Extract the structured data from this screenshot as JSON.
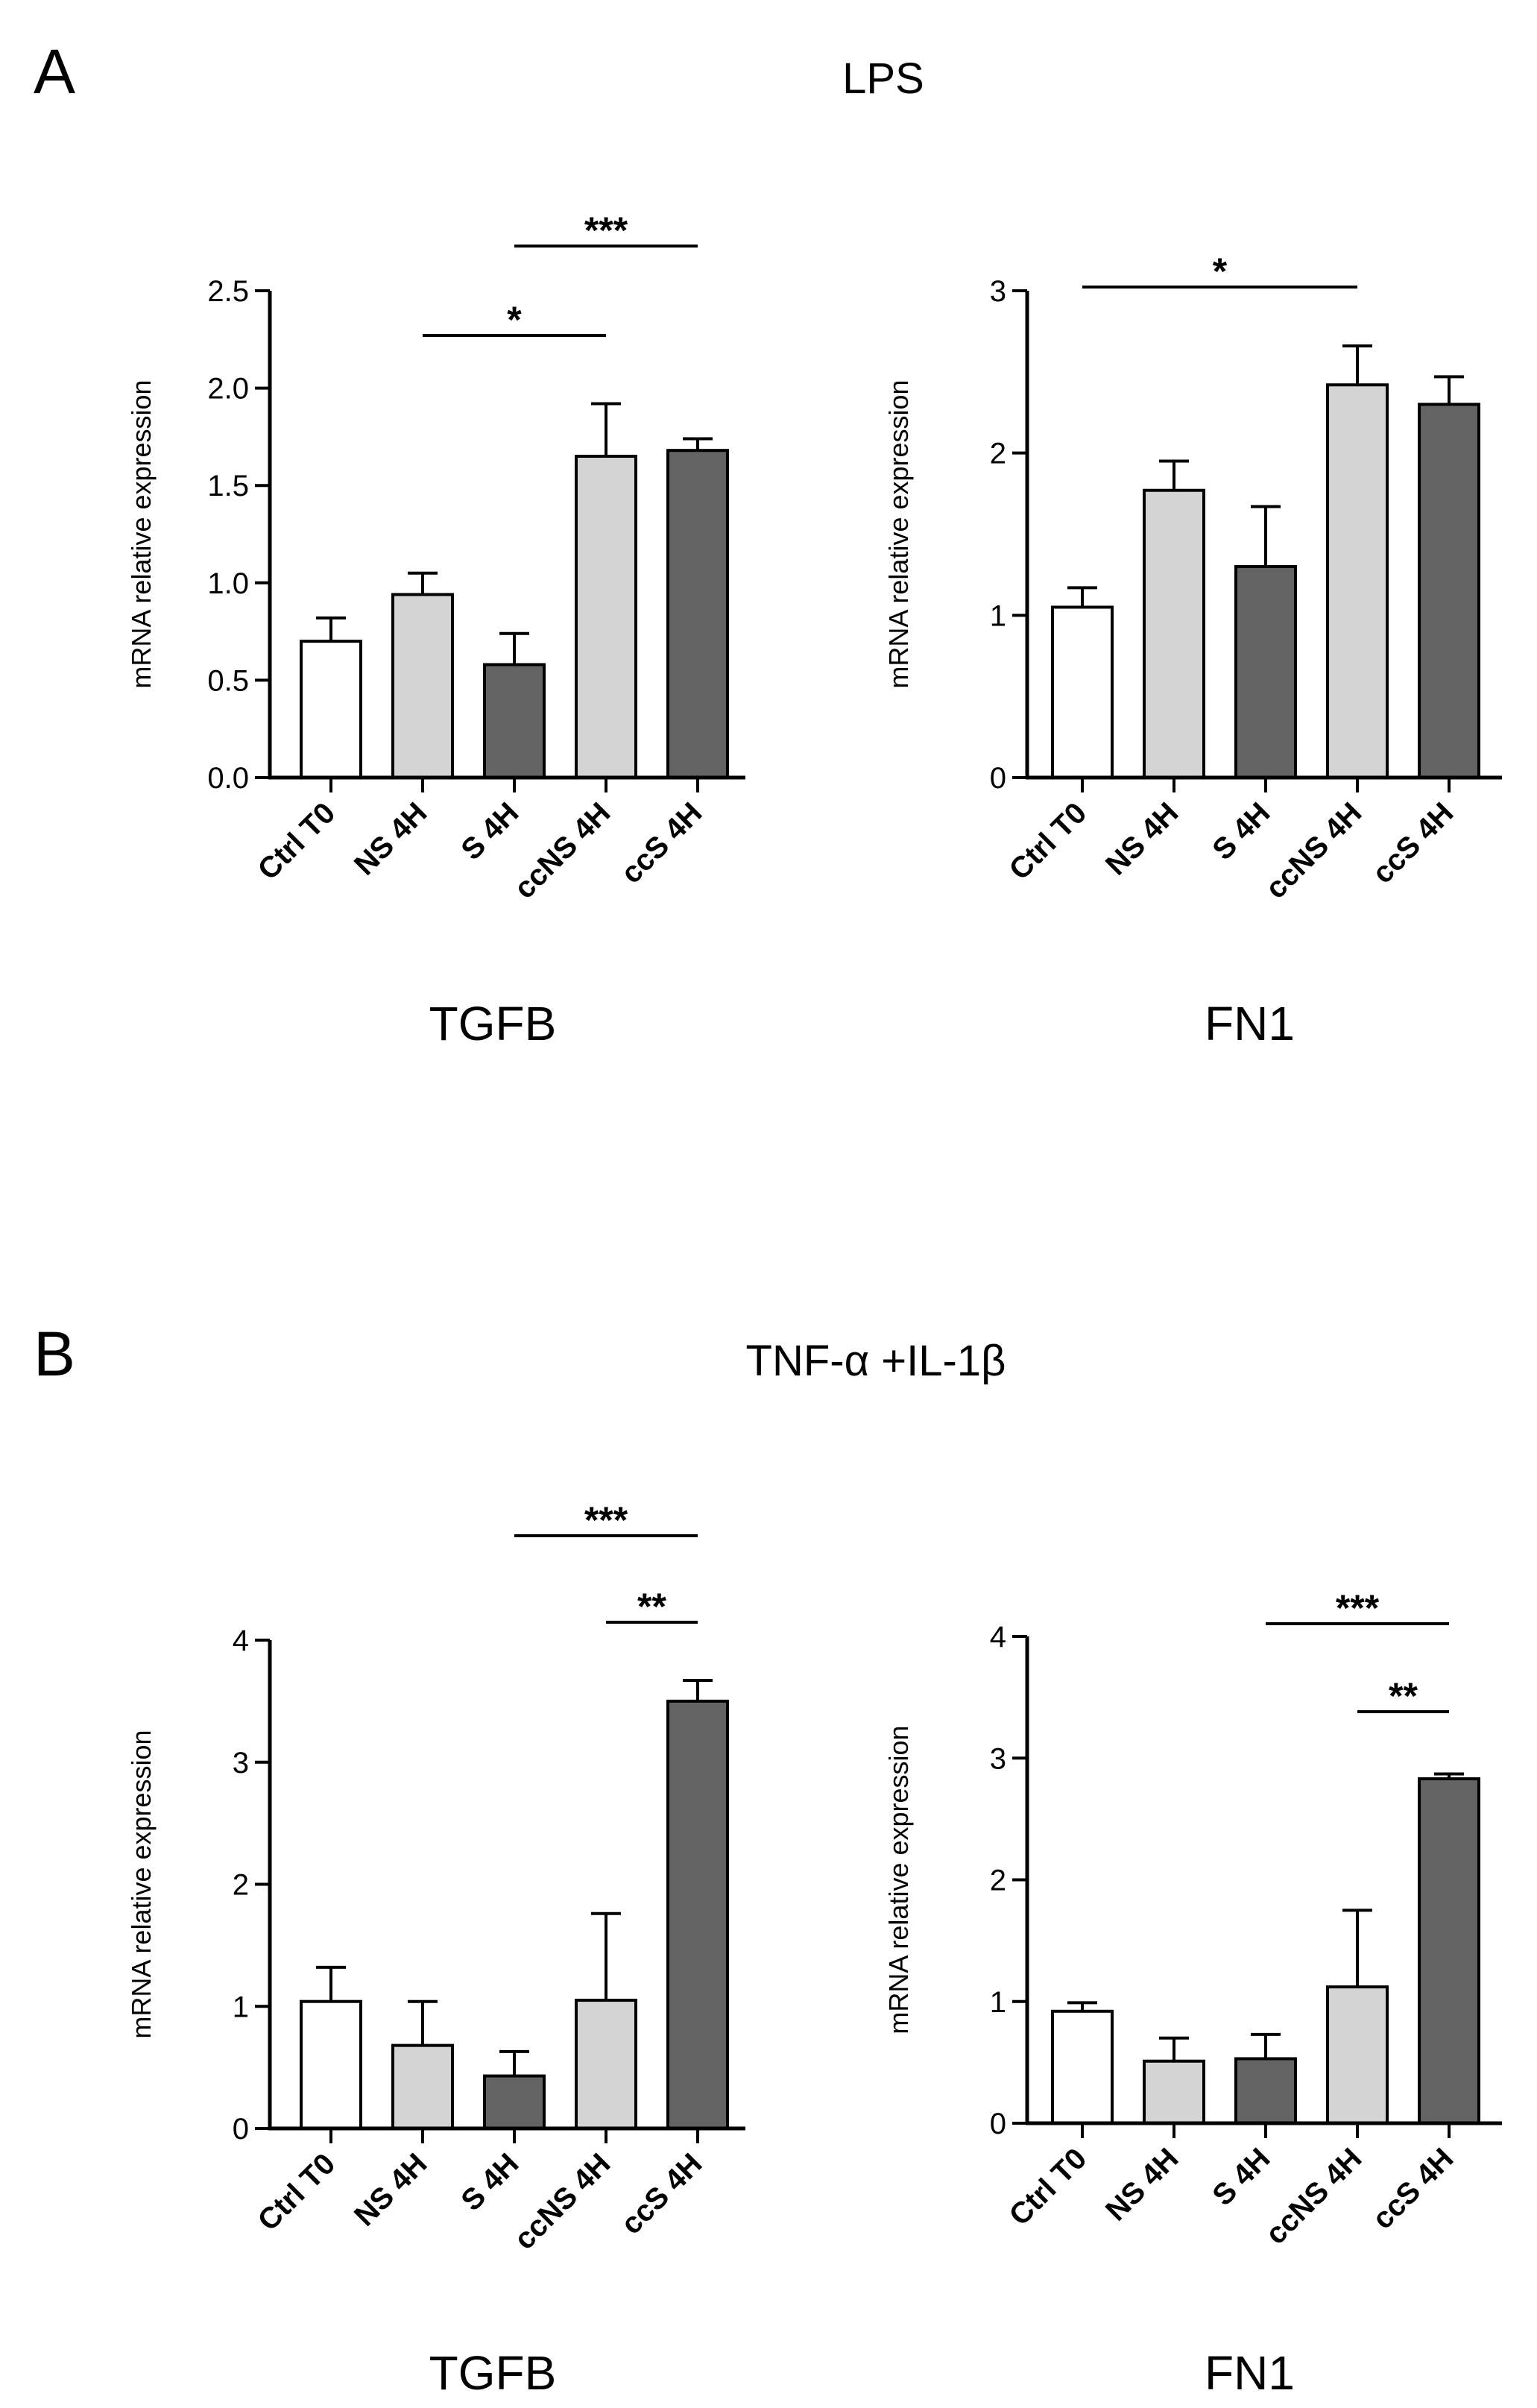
{
  "figure": {
    "panels": [
      {
        "letter": "A",
        "condition": "LPS"
      },
      {
        "letter": "B",
        "condition": "TNF-α +IL-1β"
      }
    ]
  },
  "colors": {
    "Ctrl T0": "#ffffff",
    "NS 4H": "#d4d4d4",
    "S 4H": "#636363",
    "ccNS 4H": "#d4d4d4",
    "ccS 4H": "#636363",
    "axis": "#000000"
  },
  "chart_data": [
    {
      "type": "bar",
      "panel": "A",
      "xlabel": "TGFB",
      "ylabel": "mRNA relative expression",
      "categories": [
        "Ctrl T0",
        "NS 4H",
        "S 4H",
        "ccNS 4H",
        "ccS 4H"
      ],
      "values": [
        0.7,
        0.94,
        0.58,
        1.65,
        1.68
      ],
      "errors": [
        0.12,
        0.11,
        0.16,
        0.27,
        0.06
      ],
      "ylim": [
        0,
        2.5
      ],
      "yticks": [
        "0.0",
        "0.5",
        "1.0",
        "1.5",
        "2.0",
        "2.5"
      ],
      "significance": [
        {
          "from": "NS 4H",
          "to": "ccNS 4H",
          "label": "*"
        },
        {
          "from": "S 4H",
          "to": "ccS 4H",
          "label": "***"
        }
      ]
    },
    {
      "type": "bar",
      "panel": "A",
      "xlabel": "FN1",
      "ylabel": "mRNA relative expression",
      "categories": [
        "Ctrl T0",
        "NS 4H",
        "S 4H",
        "ccNS 4H",
        "ccS 4H"
      ],
      "values": [
        1.05,
        1.77,
        1.3,
        2.42,
        2.3
      ],
      "errors": [
        0.12,
        0.18,
        0.37,
        0.24,
        0.17
      ],
      "ylim": [
        0,
        3
      ],
      "yticks": [
        "0",
        "1",
        "2",
        "3"
      ],
      "significance": [
        {
          "from": "Ctrl T0",
          "to": "ccNS 4H",
          "label": "*"
        }
      ]
    },
    {
      "type": "bar",
      "panel": "B",
      "xlabel": "TGFB",
      "ylabel": "mRNA relative expression",
      "categories": [
        "Ctrl T0",
        "NS 4H",
        "S 4H",
        "ccNS 4H",
        "ccS 4H"
      ],
      "values": [
        1.04,
        0.68,
        0.43,
        1.05,
        3.5
      ],
      "errors": [
        0.28,
        0.36,
        0.2,
        0.71,
        0.17
      ],
      "ylim": [
        0,
        4
      ],
      "yticks": [
        "0",
        "1",
        "2",
        "3",
        "4"
      ],
      "significance": [
        {
          "from": "S 4H",
          "to": "ccS 4H",
          "label": "***"
        },
        {
          "from": "ccNS 4H",
          "to": "ccS 4H",
          "label": "**"
        }
      ]
    },
    {
      "type": "bar",
      "panel": "B",
      "xlabel": "FN1",
      "ylabel": "mRNA relative expression",
      "categories": [
        "Ctrl T0",
        "NS 4H",
        "S 4H",
        "ccNS 4H",
        "ccS 4H"
      ],
      "values": [
        0.92,
        0.51,
        0.53,
        1.12,
        2.83
      ],
      "errors": [
        0.07,
        0.19,
        0.2,
        0.63,
        0.04
      ],
      "ylim": [
        0,
        4
      ],
      "yticks": [
        "0",
        "1",
        "2",
        "3",
        "4"
      ],
      "significance": [
        {
          "from": "S 4H",
          "to": "ccS 4H",
          "label": "***"
        },
        {
          "from": "ccNS 4H",
          "to": "ccS 4H",
          "label": "**"
        }
      ]
    }
  ]
}
